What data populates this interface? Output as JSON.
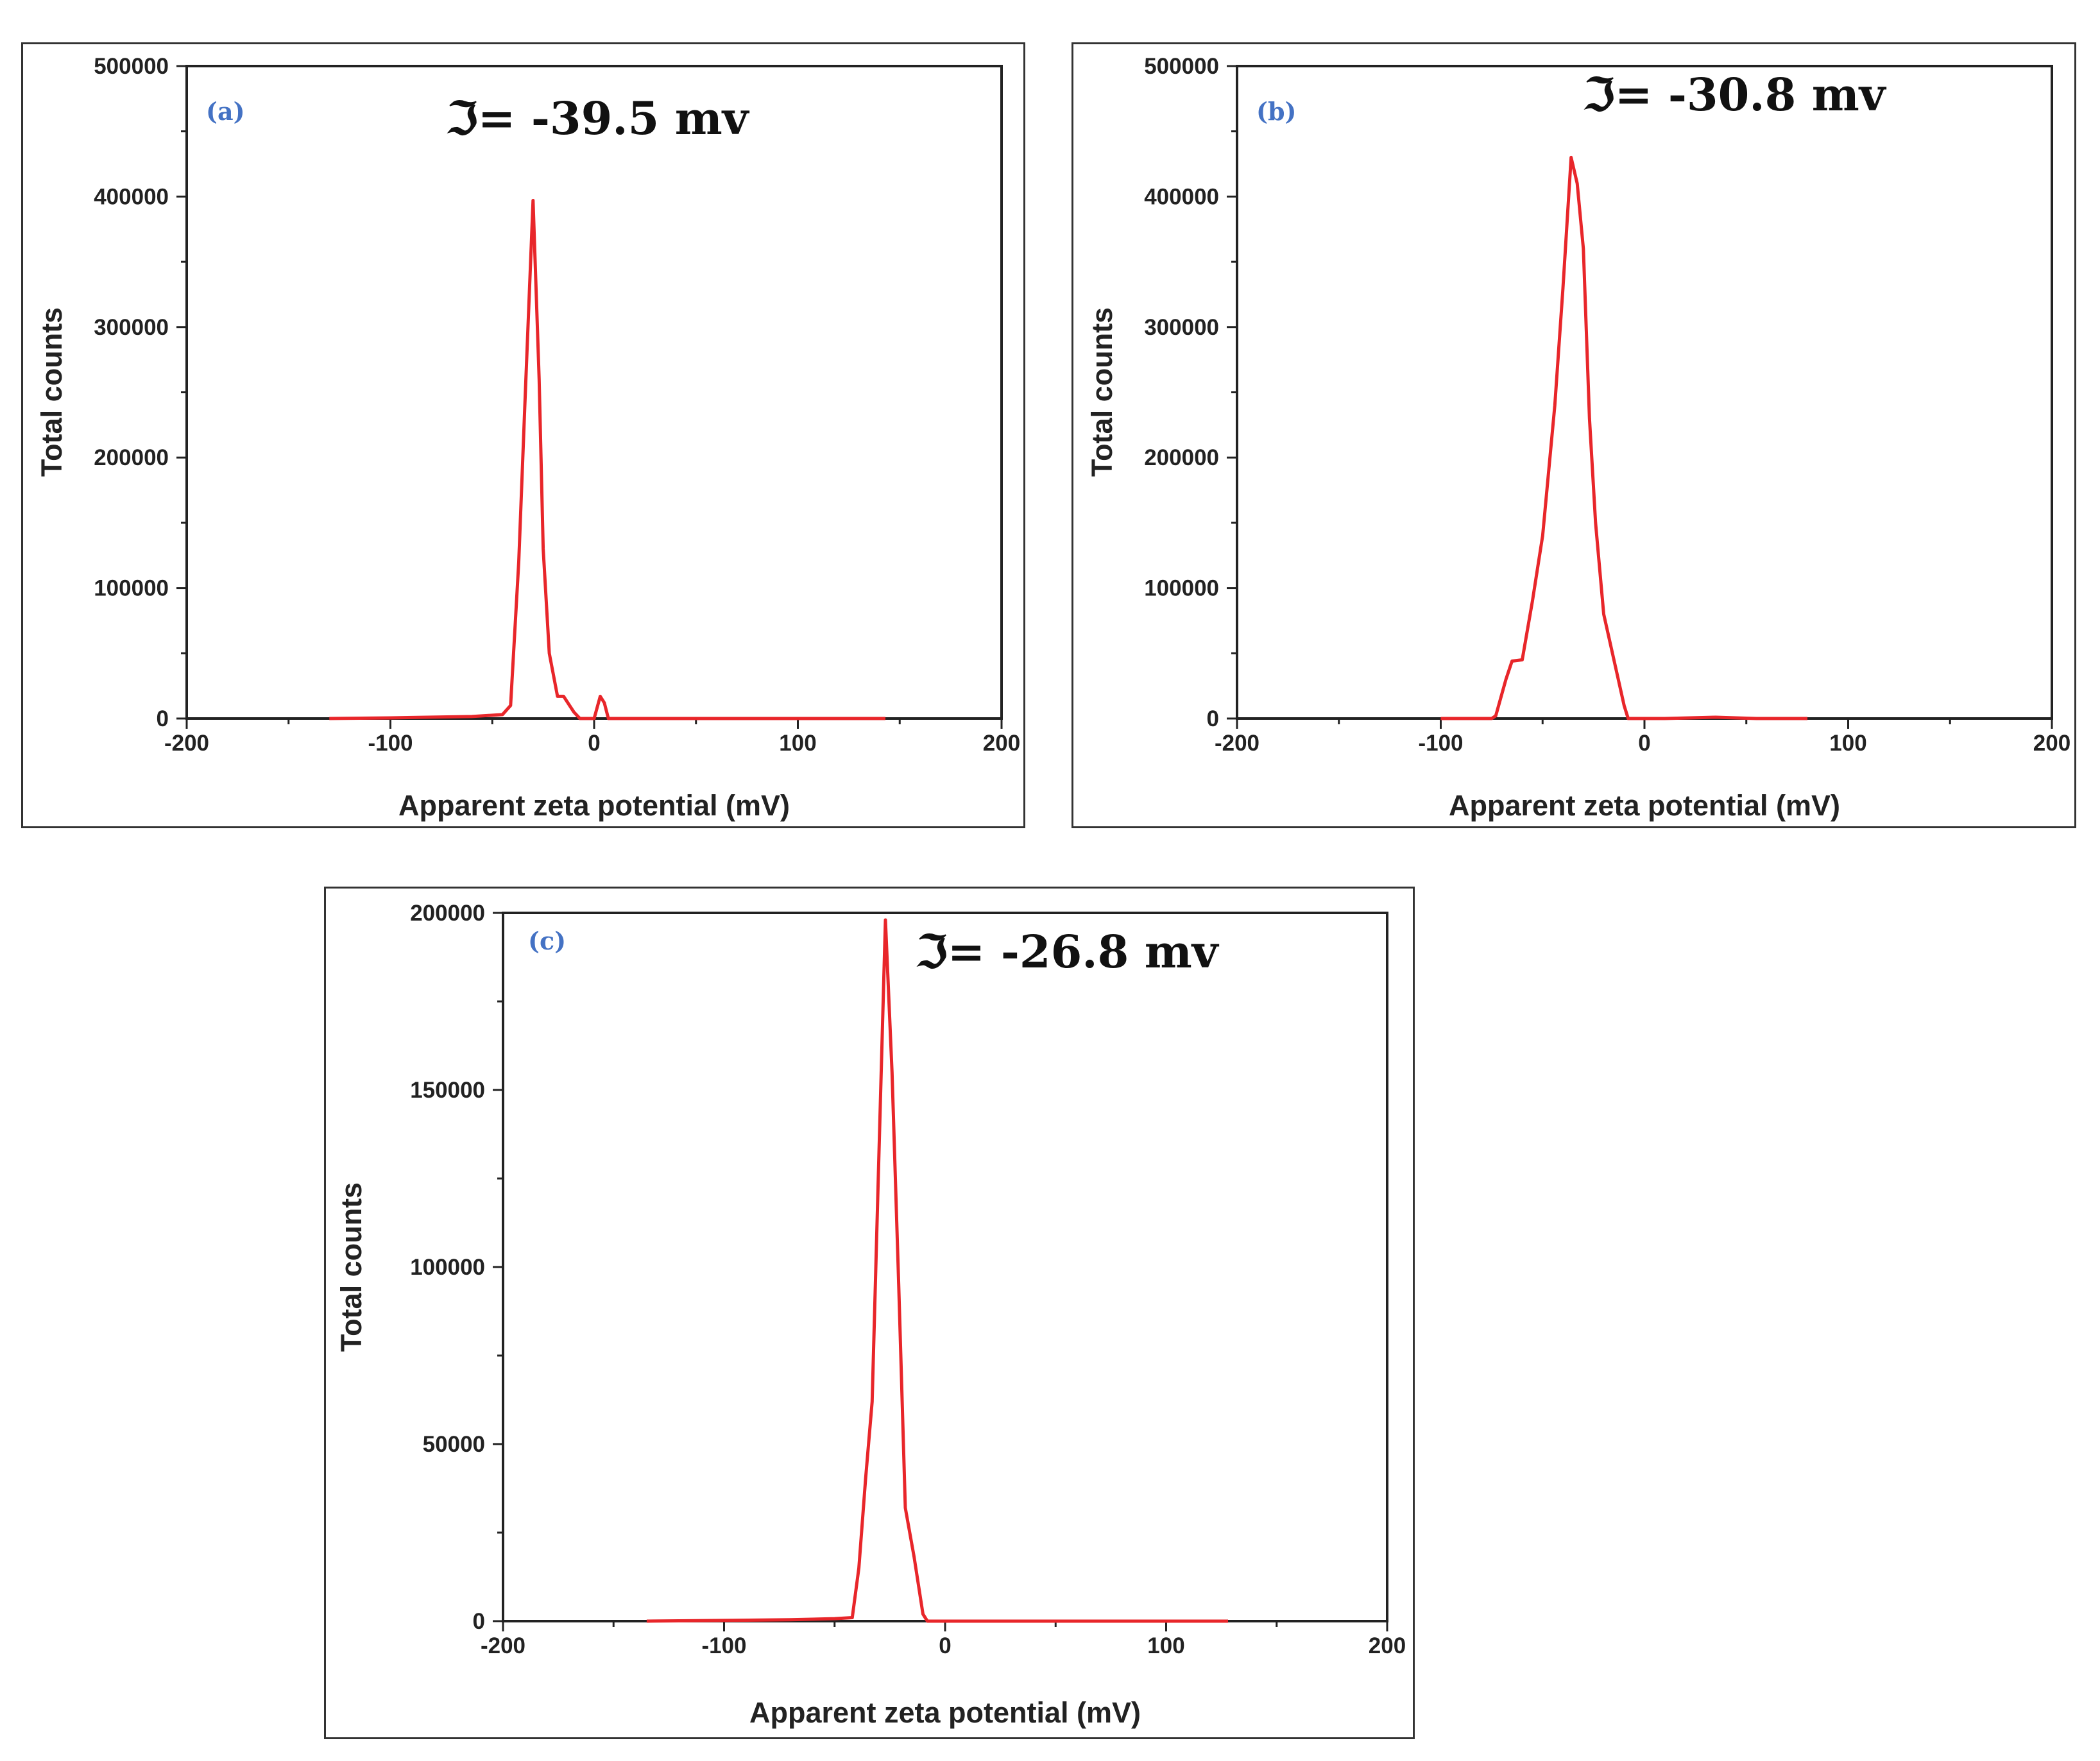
{
  "chart_data": [
    {
      "type": "line",
      "panel_label": "(a)",
      "annotation": "ℑ= -39.5 mv",
      "xlabel": "Apparent zeta potential (mV)",
      "ylabel": "Total counts",
      "xlim": [
        -200,
        200
      ],
      "ylim": [
        0,
        500000
      ],
      "x_ticks": [
        -200,
        -100,
        0,
        100,
        200
      ],
      "y_ticks": [
        0,
        100000,
        200000,
        300000,
        400000,
        500000
      ],
      "color": "#e8262a",
      "series": [
        {
          "name": "a",
          "x": [
            -130,
            -100,
            -60,
            -45,
            -41,
            -37,
            -34,
            -30,
            -27,
            -25,
            -22,
            -18,
            -15,
            -10,
            -7,
            0,
            3,
            5,
            7,
            40,
            100,
            143
          ],
          "y": [
            0,
            500,
            1500,
            3000,
            10000,
            120000,
            240000,
            397000,
            260000,
            130000,
            50000,
            17000,
            17000,
            5000,
            0,
            0,
            17000,
            12000,
            0,
            0,
            0,
            0
          ]
        }
      ]
    },
    {
      "type": "line",
      "panel_label": "(b)",
      "annotation": "ℑ= -30.8 mv",
      "xlabel": "Apparent zeta potential (mV)",
      "ylabel": "Total counts",
      "xlim": [
        -200,
        200
      ],
      "ylim": [
        0,
        500000
      ],
      "x_ticks": [
        -200,
        -100,
        0,
        100,
        200
      ],
      "y_ticks": [
        0,
        100000,
        200000,
        300000,
        400000,
        500000
      ],
      "color": "#e8262a",
      "series": [
        {
          "name": "b",
          "x": [
            -100,
            -75,
            -73,
            -68,
            -65,
            -60,
            -55,
            -50,
            -44,
            -40,
            -36,
            -33,
            -30,
            -27,
            -24,
            -20,
            -15,
            -10,
            -8,
            10,
            35,
            55,
            80
          ],
          "y": [
            0,
            0,
            2000,
            30000,
            44000,
            45000,
            90000,
            140000,
            240000,
            330000,
            430000,
            410000,
            360000,
            230000,
            150000,
            80000,
            45000,
            10000,
            0,
            0,
            1000,
            0,
            0
          ]
        }
      ]
    },
    {
      "type": "line",
      "panel_label": "(c)",
      "annotation": "ℑ= -26.8 mv",
      "xlabel": "Apparent zeta potential (mV)",
      "ylabel": "Total counts",
      "xlim": [
        -200,
        200
      ],
      "ylim": [
        0,
        200000
      ],
      "x_ticks": [
        -200,
        -100,
        0,
        100,
        200
      ],
      "y_ticks": [
        0,
        50000,
        100000,
        150000,
        200000
      ],
      "color": "#e8262a",
      "series": [
        {
          "name": "c",
          "x": [
            -135,
            -100,
            -70,
            -50,
            -42,
            -39,
            -36,
            -33,
            -30,
            -27,
            -24,
            -21,
            -18,
            -14,
            -10,
            -8,
            0,
            50,
            100,
            128
          ],
          "y": [
            0,
            200,
            400,
            700,
            1000,
            15000,
            40000,
            62000,
            130000,
            198000,
            155000,
            95000,
            32000,
            18000,
            2000,
            0,
            0,
            0,
            0,
            0
          ]
        }
      ]
    }
  ]
}
